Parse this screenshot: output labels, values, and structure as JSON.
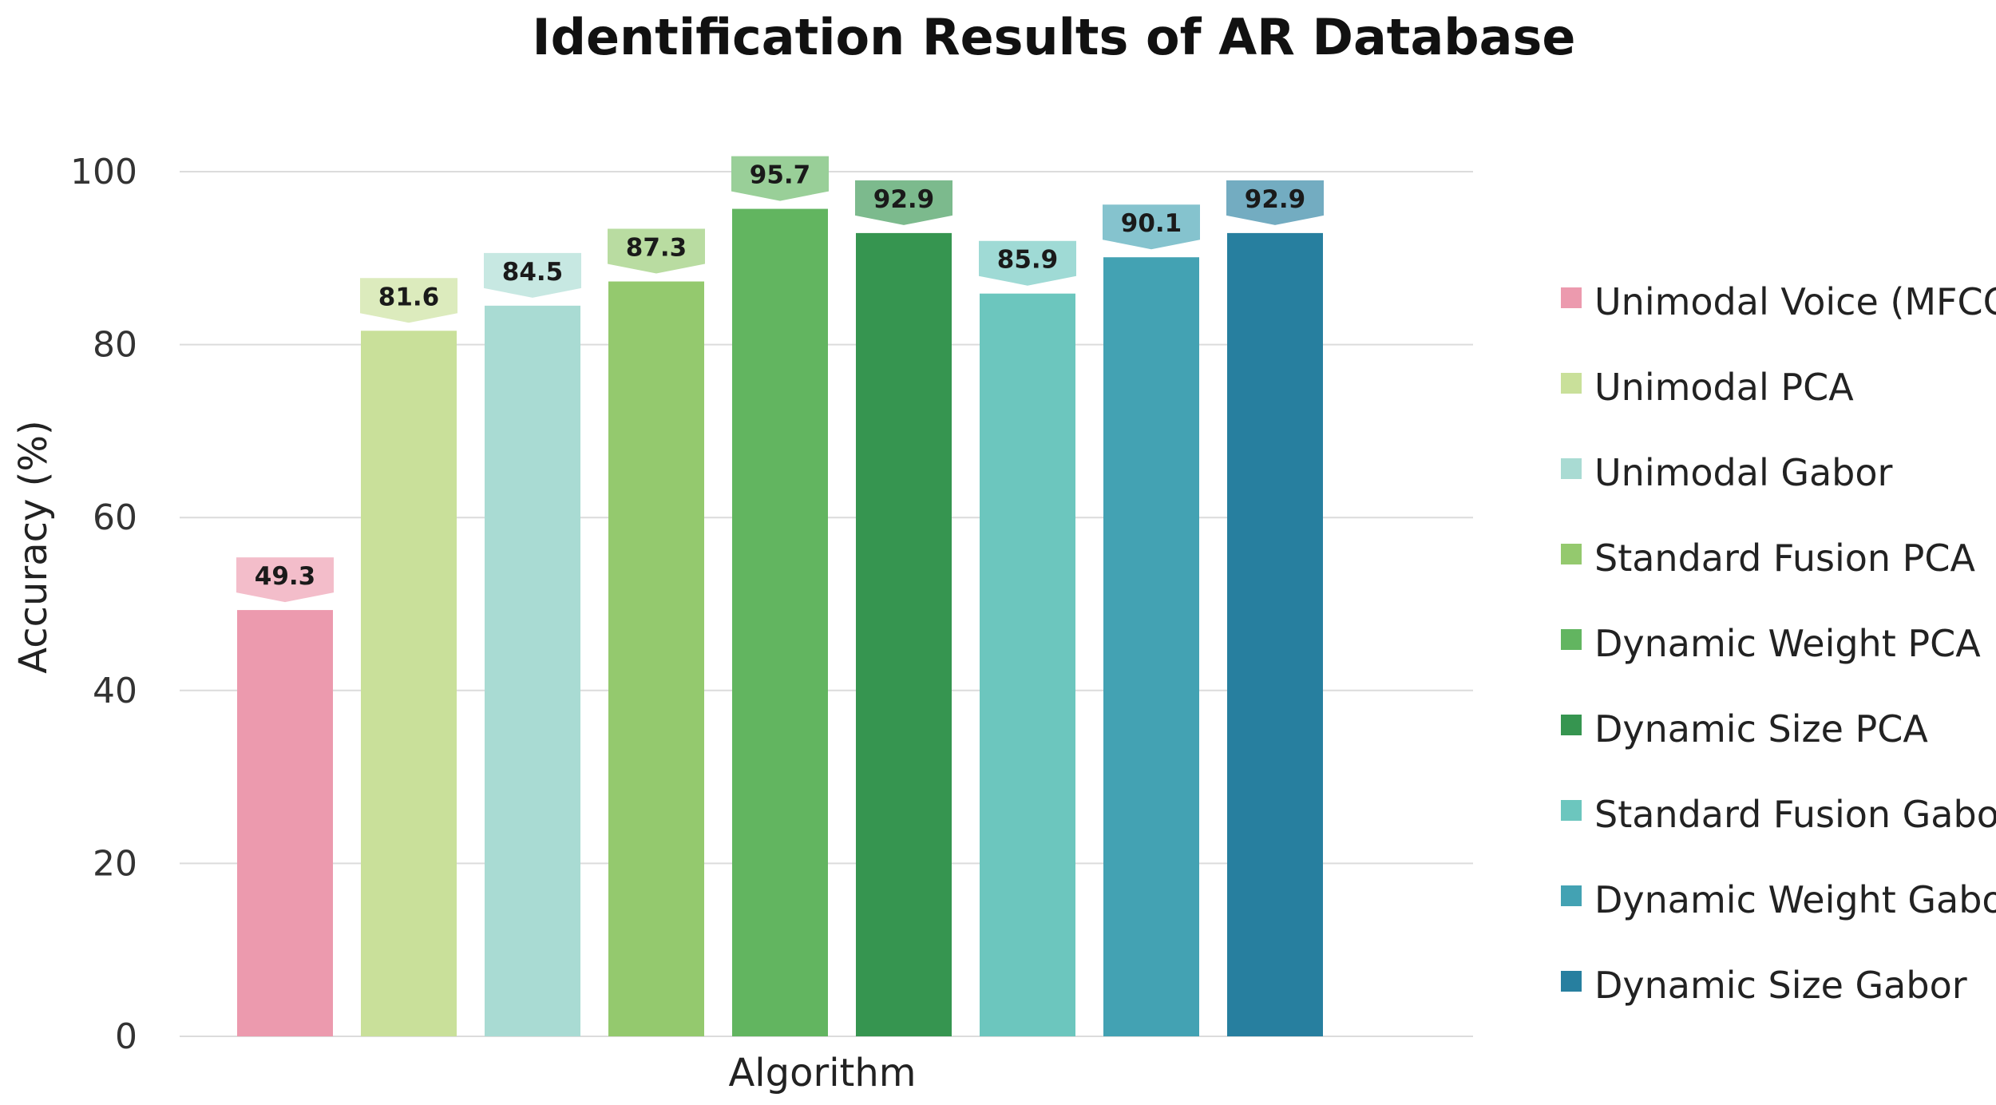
{
  "chart_data": {
    "type": "bar",
    "title": "Identification Results of AR Database",
    "xlabel": "Algorithm",
    "ylabel": "Accuracy (%)",
    "ylim": [
      0,
      100
    ],
    "yticks": [
      "0",
      "20",
      "40",
      "60",
      "80",
      "100"
    ],
    "grid": true,
    "legend_position": "right",
    "series": [
      {
        "name": "Unimodal Voice (MFCC)",
        "value": 49.3,
        "label": "49.3",
        "color": "#ec9aae"
      },
      {
        "name": "Unimodal PCA",
        "value": 81.6,
        "label": "81.6",
        "color": "#c9e09a"
      },
      {
        "name": "Unimodal Gabor",
        "value": 84.5,
        "label": "84.5",
        "color": "#a9dbd3"
      },
      {
        "name": "Standard Fusion PCA",
        "value": 87.3,
        "label": "87.3",
        "color": "#94c96e"
      },
      {
        "name": "Dynamic Weight PCA",
        "value": 95.7,
        "label": "95.7",
        "color": "#62b560"
      },
      {
        "name": "Dynamic Size PCA",
        "value": 92.9,
        "label": "92.9",
        "color": "#369550"
      },
      {
        "name": "Standard Fusion Gabor",
        "value": 85.9,
        "label": "85.9",
        "color": "#6cc6be"
      },
      {
        "name": "Dynamic Weight Gabor",
        "value": 90.1,
        "label": "90.1",
        "color": "#43a2b3"
      },
      {
        "name": "Dynamic Size Gabor",
        "value": 92.9,
        "label": "92.9",
        "color": "#277f9f"
      }
    ]
  }
}
